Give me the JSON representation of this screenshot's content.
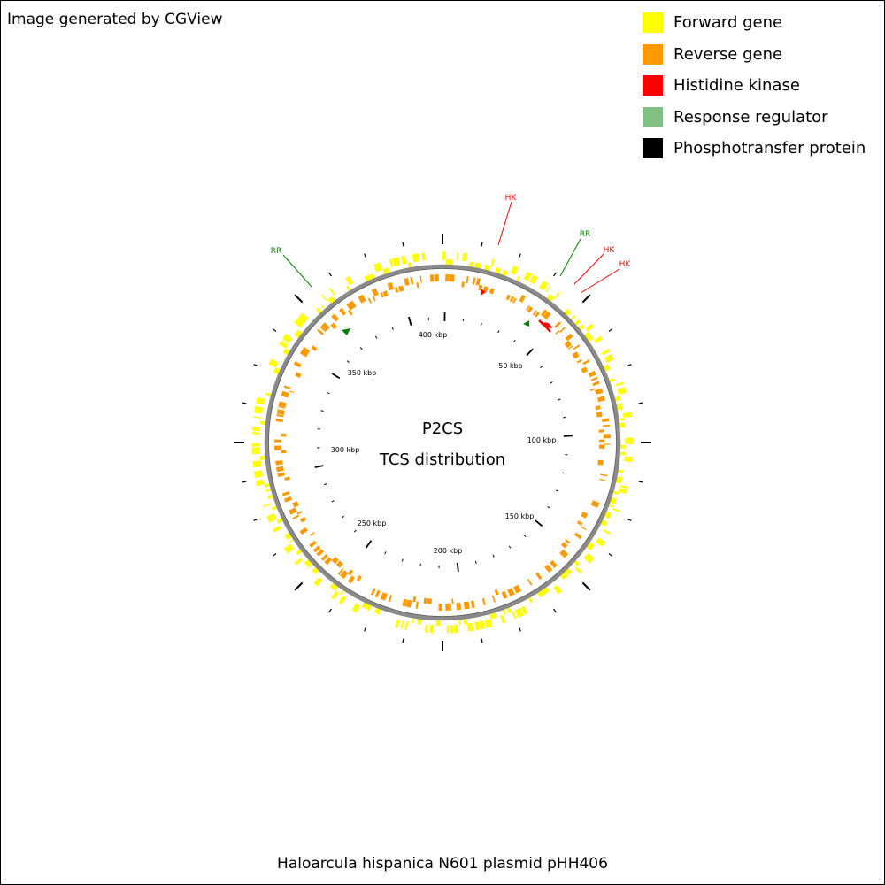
{
  "credit": "Image generated by CGView",
  "footer_title": "Haloarcula hispanica N601 plasmid pHH406",
  "center": {
    "line1": "P2CS",
    "line2": "TCS distribution"
  },
  "legend": [
    {
      "label": "Forward gene",
      "color": "#ffff00"
    },
    {
      "label": "Reverse gene",
      "color": "#ff9900"
    },
    {
      "label": "Histidine kinase",
      "color": "#ff0000"
    },
    {
      "label": "Response regulator",
      "color": "#80c080"
    },
    {
      "label": "Phosphotransfer protein",
      "color": "#000000"
    }
  ],
  "ruler": {
    "labels": [
      {
        "text": "50 kbp",
        "kbp": 50
      },
      {
        "text": "100 kbp",
        "kbp": 100
      },
      {
        "text": "150 kbp",
        "kbp": 150
      },
      {
        "text": "200 kbp",
        "kbp": 200
      },
      {
        "text": "250 kbp",
        "kbp": 250
      },
      {
        "text": "300 kbp",
        "kbp": 300
      },
      {
        "text": "350 kbp",
        "kbp": 350
      },
      {
        "text": "400 kbp",
        "kbp": 400
      }
    ]
  },
  "callouts": [
    {
      "label": "RR",
      "color": "#008000",
      "kind": "response-regulator"
    },
    {
      "label": "HK",
      "color": "#ff0000",
      "kind": "histidine-kinase"
    },
    {
      "label": "RR",
      "color": "#008000",
      "kind": "response-regulator"
    },
    {
      "label": "HK",
      "color": "#ff0000",
      "kind": "histidine-kinase"
    },
    {
      "label": "HK",
      "color": "#ff0000",
      "kind": "histidine-kinase"
    }
  ]
}
